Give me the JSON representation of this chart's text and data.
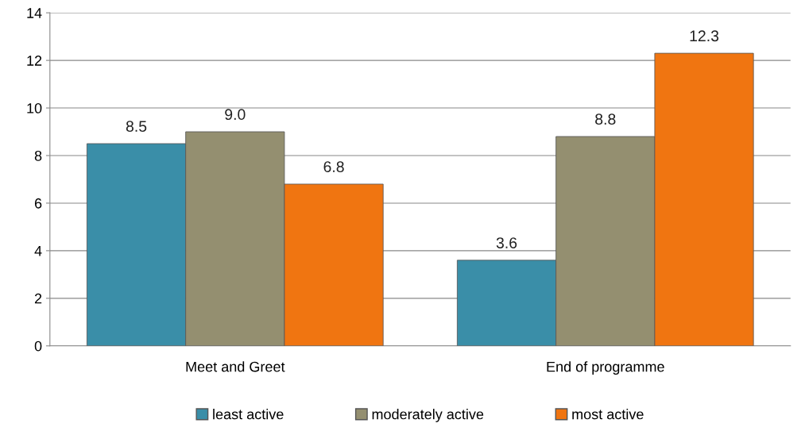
{
  "chart_data": {
    "type": "bar",
    "categories": [
      "Meet and Greet",
      "End of programme"
    ],
    "series": [
      {
        "name": "least active",
        "color": "#3a8ea8",
        "values": [
          8.5,
          3.6
        ],
        "value_labels": [
          "8.5",
          "3.6"
        ]
      },
      {
        "name": "moderately active",
        "color": "#948f70",
        "values": [
          9.0,
          8.8
        ],
        "value_labels": [
          "9.0",
          "8.8"
        ]
      },
      {
        "name": "most active",
        "color": "#f07511",
        "values": [
          6.8,
          12.3
        ],
        "value_labels": [
          "6.8",
          "12.3"
        ]
      }
    ],
    "ylim": [
      0,
      14
    ],
    "yticks": [
      0,
      2,
      4,
      6,
      8,
      10,
      12,
      14
    ],
    "grid": "y",
    "legend": "bottom"
  }
}
